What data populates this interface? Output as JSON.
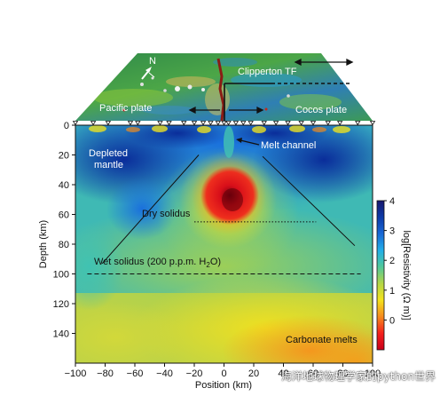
{
  "chart_data": {
    "type": "heatmap",
    "xlabel": "Position (km)",
    "ylabel": "Depth (km)",
    "xlim": [
      -100,
      100
    ],
    "ylim": [
      0,
      160
    ],
    "x_ticks": [
      -100,
      -80,
      -60,
      -40,
      -20,
      0,
      20,
      40,
      60,
      80,
      100
    ],
    "y_ticks": [
      0,
      20,
      40,
      60,
      80,
      100,
      120,
      140
    ],
    "colorbar": {
      "label": "log[Resistivity (Ω m)]",
      "range": [
        -1,
        4
      ],
      "ticks": [
        0,
        1,
        2,
        3,
        4
      ],
      "colors": [
        "#c8001a",
        "#f4201c",
        "#f58a1e",
        "#f4e21c",
        "#b4d646",
        "#50c89a",
        "#22aee8",
        "#1868d6",
        "#0c3aa8",
        "#18186e"
      ]
    },
    "map_labels": {
      "north": "N",
      "clipperton": "Clipperton TF",
      "pacific": "Pacific plate",
      "cocos": "Cocos plate"
    },
    "annotations": {
      "depleted_mantle_line1": "Depleted",
      "depleted_mantle_line2": "mantle",
      "melt_channel": "Melt channel",
      "dry_solidus": "Dry solidus",
      "wet_solidus_pre": "Wet solidus (200 p.p.m. H",
      "wet_solidus_sub": "2",
      "wet_solidus_post": "O)",
      "carbonate_melts": "Carbonate melts"
    },
    "features": {
      "dry_solidus_depth_km": 65,
      "dry_solidus_x_range_km": [
        -20,
        62
      ],
      "wet_solidus_depth_km": 100,
      "wet_solidus_x_range_km": [
        -92,
        92
      ],
      "conductor_center": {
        "x_km": 5,
        "depth_km": 50
      },
      "flank_lines": [
        {
          "from": [
            -82,
            93
          ],
          "to": [
            -17,
            20
          ]
        },
        {
          "from": [
            88,
            81
          ],
          "to": [
            26,
            21
          ]
        }
      ],
      "stations_x_km": [
        -100,
        -88,
        -78,
        -63,
        -58,
        -43,
        -37,
        -27,
        -20,
        -14,
        -9,
        -4,
        0,
        3,
        8,
        13,
        18,
        27,
        35,
        43,
        52,
        60,
        70,
        78,
        90,
        100
      ]
    }
  },
  "watermark": {
    "text": "海洋地球物理学家的python世界"
  }
}
